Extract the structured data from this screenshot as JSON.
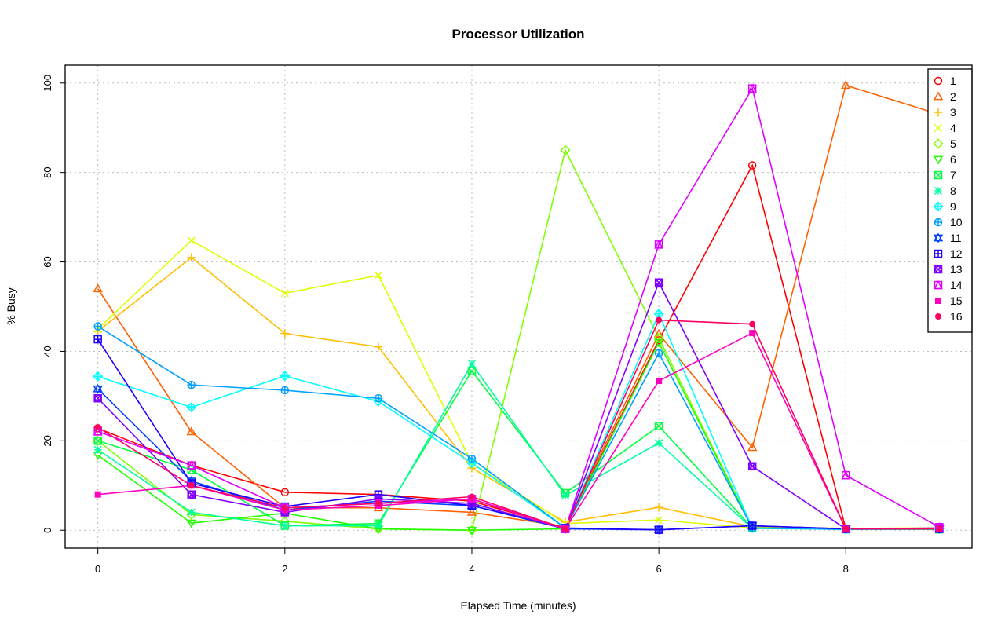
{
  "chart_data": {
    "type": "line",
    "title": "Processor Utilization",
    "xlabel": "Elapsed Time (minutes)",
    "ylabel": "% Busy",
    "xlim": [
      -0.35,
      9.35
    ],
    "ylim": [
      -4,
      104
    ],
    "xticks": [
      "0",
      "2",
      "4",
      "6",
      "8"
    ],
    "yticks": [
      "0",
      "20",
      "40",
      "60",
      "80",
      "100"
    ],
    "grid": true,
    "legend_position": "top-right",
    "x": [
      0,
      1,
      2,
      3,
      4,
      5,
      6,
      7,
      8,
      9
    ],
    "series": [
      {
        "name": "1",
        "color": "#FF0000",
        "marker": "circle",
        "values": [
          22.8,
          14.5,
          8.5,
          8.0,
          6.5,
          0.5,
          42.5,
          81.6,
          0.3,
          0.4
        ]
      },
      {
        "name": "2",
        "color": "#FF6000",
        "marker": "triangle",
        "values": [
          54.0,
          22.0,
          5.0,
          5.0,
          4.0,
          0.8,
          43.9,
          18.5,
          99.5,
          93.0
        ]
      },
      {
        "name": "3",
        "color": "#FFBF00",
        "marker": "plus",
        "values": [
          44.5,
          61.0,
          44.0,
          41.0,
          13.9,
          1.8,
          5.1,
          0.8,
          0.4,
          0.5
        ]
      },
      {
        "name": "4",
        "color": "#DFFF00",
        "marker": "cross",
        "values": [
          45.0,
          64.8,
          53.0,
          57.0,
          15.0,
          1.5,
          2.3,
          0.5,
          0.4,
          0.5
        ]
      },
      {
        "name": "5",
        "color": "#80FF00",
        "marker": "diamond",
        "values": [
          20.0,
          3.5,
          2.0,
          0.3,
          0.0,
          85.0,
          43.0,
          0.5,
          0.3,
          0.4
        ]
      },
      {
        "name": "6",
        "color": "#20FF00",
        "marker": "triangle-down",
        "values": [
          16.8,
          1.6,
          3.8,
          0.3,
          0.0,
          0.3,
          42.0,
          0.5,
          0.3,
          0.3
        ]
      },
      {
        "name": "7",
        "color": "#00FF40",
        "marker": "square-cross",
        "values": [
          20.0,
          13.5,
          1.0,
          1.5,
          35.6,
          8.3,
          23.3,
          0.5,
          0.2,
          0.2
        ]
      },
      {
        "name": "8",
        "color": "#00FF9F",
        "marker": "asterisk",
        "values": [
          18.0,
          4.0,
          1.0,
          1.0,
          37.2,
          7.8,
          19.5,
          0.4,
          0.2,
          0.2
        ]
      },
      {
        "name": "9",
        "color": "#00FFFF",
        "marker": "diamond-plus",
        "values": [
          34.4,
          27.5,
          34.5,
          28.8,
          15.0,
          0.5,
          48.4,
          0.5,
          0.2,
          0.3
        ]
      },
      {
        "name": "10",
        "color": "#009FFF",
        "marker": "circle-plus",
        "values": [
          45.6,
          32.5,
          31.3,
          29.5,
          16.0,
          0.5,
          39.6,
          0.5,
          0.2,
          0.3
        ]
      },
      {
        "name": "11",
        "color": "#0040FF",
        "marker": "star-of-david",
        "values": [
          31.6,
          11.0,
          4.5,
          6.5,
          5.5,
          0.3,
          0.1,
          1.0,
          0.3,
          0.3
        ]
      },
      {
        "name": "12",
        "color": "#2000FF",
        "marker": "square-plus",
        "values": [
          42.7,
          10.5,
          5.3,
          8.0,
          5.5,
          0.5,
          0.1,
          1.0,
          0.3,
          0.3
        ]
      },
      {
        "name": "13",
        "color": "#8000FF",
        "marker": "circle-cross",
        "values": [
          29.5,
          8.0,
          4.0,
          7.0,
          6.0,
          0.3,
          55.4,
          14.3,
          0.3,
          0.5
        ]
      },
      {
        "name": "14",
        "color": "#DF00FF",
        "marker": "square-triangle",
        "values": [
          22.1,
          14.5,
          5.0,
          6.0,
          7.0,
          0.3,
          63.9,
          98.8,
          12.3,
          0.7
        ]
      },
      {
        "name": "15",
        "color": "#FF00BF",
        "marker": "filled-square",
        "values": [
          8.0,
          10.0,
          4.5,
          5.5,
          7.0,
          0.3,
          33.4,
          44.1,
          0.3,
          0.3
        ]
      },
      {
        "name": "16",
        "color": "#FF0060",
        "marker": "filled-circle",
        "values": [
          23.0,
          10.0,
          5.0,
          6.0,
          7.5,
          0.3,
          47.0,
          46.1,
          0.3,
          0.3
        ]
      }
    ]
  }
}
